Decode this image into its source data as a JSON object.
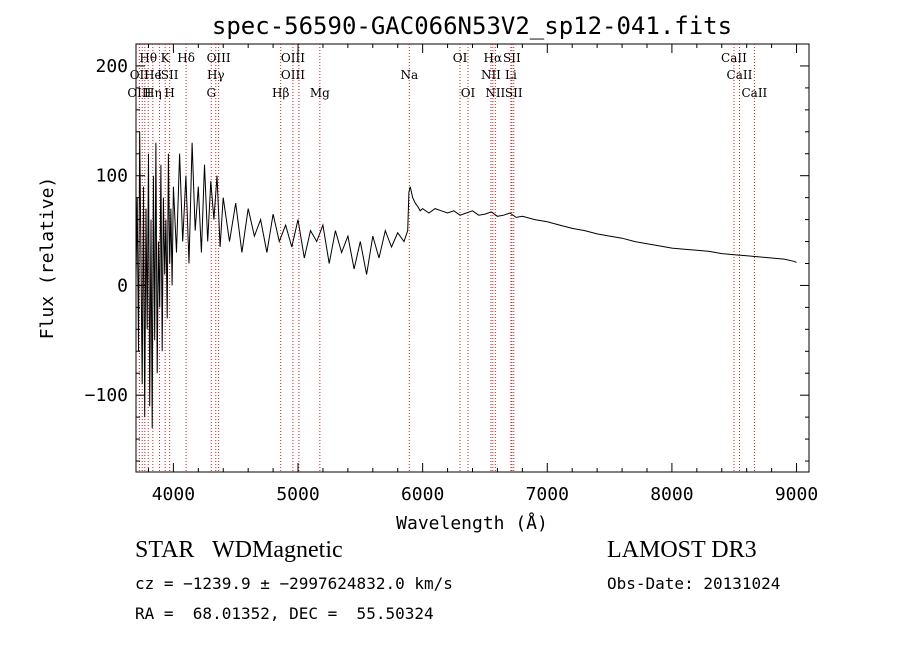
{
  "chart_data": {
    "type": "line",
    "title": "spec-56590-GAC066N53V2_sp12-041.fits",
    "xlabel": "Wavelength (Å)",
    "ylabel": "Flux (relative)",
    "xlim": [
      3700,
      9100
    ],
    "ylim": [
      -170,
      220
    ],
    "xticks": [
      4000,
      5000,
      6000,
      7000,
      8000,
      9000
    ],
    "yticks": [
      -100,
      0,
      100,
      200
    ],
    "series": [
      {
        "name": "flux",
        "x": [
          3700,
          3710,
          3720,
          3730,
          3740,
          3750,
          3760,
          3770,
          3780,
          3790,
          3800,
          3810,
          3820,
          3830,
          3840,
          3850,
          3860,
          3870,
          3880,
          3890,
          3900,
          3910,
          3920,
          3930,
          3940,
          3950,
          3960,
          3970,
          3980,
          3990,
          4000,
          4025,
          4050,
          4075,
          4100,
          4125,
          4150,
          4175,
          4200,
          4225,
          4250,
          4275,
          4300,
          4325,
          4350,
          4375,
          4400,
          4450,
          4500,
          4550,
          4600,
          4650,
          4700,
          4750,
          4800,
          4850,
          4900,
          4950,
          5000,
          5050,
          5100,
          5150,
          5200,
          5250,
          5300,
          5350,
          5400,
          5450,
          5500,
          5550,
          5600,
          5650,
          5700,
          5750,
          5800,
          5850,
          5880,
          5890,
          5900,
          5920,
          5940,
          5960,
          5980,
          6000,
          6050,
          6100,
          6150,
          6200,
          6250,
          6300,
          6350,
          6400,
          6450,
          6500,
          6550,
          6600,
          6650,
          6700,
          6750,
          6800,
          6900,
          7000,
          7100,
          7200,
          7300,
          7400,
          7500,
          7600,
          7700,
          7800,
          7900,
          8000,
          8100,
          8200,
          8300,
          8400,
          8500,
          8600,
          8700,
          8800,
          8900,
          8980,
          9000
        ],
        "y": [
          5,
          80,
          -60,
          140,
          20,
          -90,
          90,
          -120,
          70,
          -40,
          120,
          -110,
          60,
          -130,
          100,
          -50,
          130,
          -80,
          40,
          -20,
          110,
          -60,
          80,
          10,
          60,
          -30,
          120,
          20,
          70,
          0,
          90,
          30,
          120,
          40,
          100,
          20,
          130,
          50,
          90,
          30,
          110,
          40,
          95,
          60,
          100,
          35,
          80,
          40,
          75,
          30,
          70,
          45,
          60,
          30,
          65,
          40,
          55,
          35,
          60,
          25,
          50,
          40,
          55,
          20,
          50,
          30,
          45,
          15,
          40,
          10,
          45,
          25,
          50,
          35,
          48,
          40,
          50,
          85,
          90,
          80,
          75,
          72,
          68,
          70,
          66,
          70,
          68,
          66,
          68,
          64,
          66,
          68,
          64,
          65,
          67,
          63,
          64,
          66,
          62,
          63,
          60,
          58,
          55,
          52,
          50,
          47,
          45,
          43,
          40,
          38,
          36,
          34,
          33,
          32,
          31,
          29,
          28,
          27,
          26,
          25,
          24,
          22,
          21
        ]
      }
    ],
    "line_markers": [
      {
        "label": "Hθ",
        "wavelength": 3798,
        "row": 0
      },
      {
        "label": "OII",
        "wavelength": 3727,
        "row": 1
      },
      {
        "label": "OIII",
        "wavelength": 3727,
        "row": 2
      },
      {
        "label": "He",
        "wavelength": 3835,
        "row": 1
      },
      {
        "label": "Hη",
        "wavelength": 3835,
        "row": 2
      },
      {
        "label": "K",
        "wavelength": 3934,
        "row": 0
      },
      {
        "label": "I",
        "wavelength": 3889,
        "row": 1
      },
      {
        "label": "SII",
        "wavelength": 3970,
        "row": 1
      },
      {
        "label": "H",
        "wavelength": 3970,
        "row": 2
      },
      {
        "label": "Hδ",
        "wavelength": 4102,
        "row": 0
      },
      {
        "label": "OIII",
        "wavelength": 4363,
        "row": 0
      },
      {
        "label": "Hγ",
        "wavelength": 4340,
        "row": 1
      },
      {
        "label": "G",
        "wavelength": 4304,
        "row": 2
      },
      {
        "label": "OIII",
        "wavelength": 4959,
        "row": 0
      },
      {
        "label": "OIII",
        "wavelength": 4959,
        "row": 1
      },
      {
        "label": "Hβ",
        "wavelength": 4861,
        "row": 2
      },
      {
        "label": "Mg",
        "wavelength": 5175,
        "row": 2
      },
      {
        "label": "Na",
        "wavelength": 5893,
        "row": 1
      },
      {
        "label": "OI",
        "wavelength": 6300,
        "row": 0
      },
      {
        "label": "OI",
        "wavelength": 6364,
        "row": 2
      },
      {
        "label": "Hα",
        "wavelength": 6563,
        "row": 0
      },
      {
        "label": "SII",
        "wavelength": 6716,
        "row": 0
      },
      {
        "label": "NII",
        "wavelength": 6548,
        "row": 1
      },
      {
        "label": "Li",
        "wavelength": 6708,
        "row": 1
      },
      {
        "label": "NII",
        "wavelength": 6583,
        "row": 2
      },
      {
        "label": "SII",
        "wavelength": 6731,
        "row": 2
      },
      {
        "label": "CaII",
        "wavelength": 8498,
        "row": 0
      },
      {
        "label": "CaII",
        "wavelength": 8542,
        "row": 1
      },
      {
        "label": "CaII",
        "wavelength": 8662,
        "row": 2
      }
    ],
    "marker_lines": [
      3727,
      3750,
      3771,
      3798,
      3835,
      3889,
      3934,
      3970,
      4102,
      4304,
      4340,
      4363,
      4861,
      4959,
      5007,
      5175,
      5893,
      6300,
      6364,
      6548,
      6563,
      6583,
      6708,
      6716,
      6731,
      8498,
      8542,
      8662
    ],
    "colors": {
      "spectrum": "#000000",
      "marker_line": "#cc2222",
      "axes": "#000000"
    }
  },
  "footer": {
    "class_label": "STAR",
    "subclass": "WDMagnetic",
    "survey": "LAMOST DR3",
    "cz_line": "cz = −1239.9 ± −2997624832.0 km/s",
    "obs_date": "Obs-Date: 20131024",
    "ra_dec": "RA =  68.01352, DEC =  55.50324"
  }
}
